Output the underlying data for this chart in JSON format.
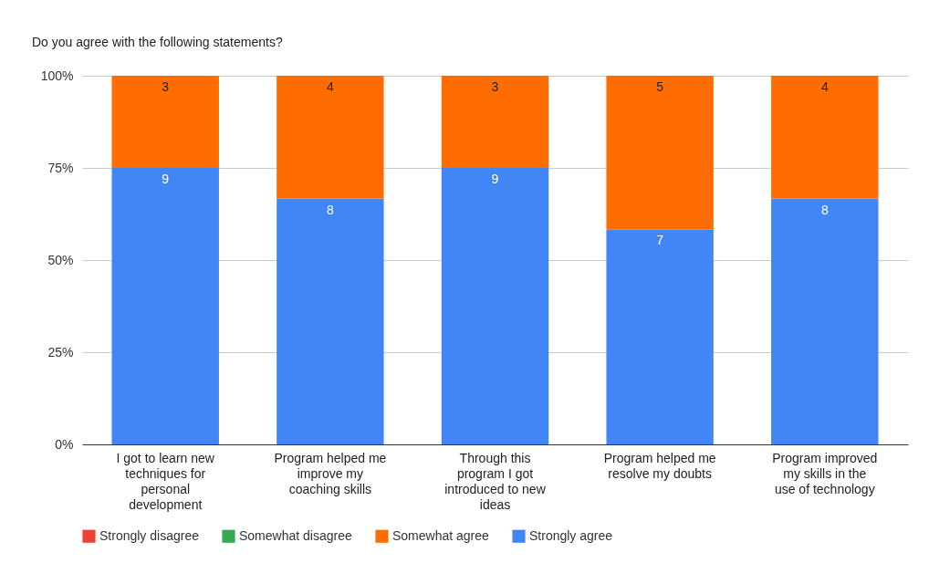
{
  "chart_data": {
    "type": "bar",
    "stacked": true,
    "title": "Do you agree with the following statements?",
    "categories": [
      "I got to learn new techniques for personal development",
      "Program helped me improve my coaching skills",
      "Through this program I got introduced to new ideas",
      "Program helped me resolve my doubts",
      "Program improved my skills in the use of technology"
    ],
    "series": [
      {
        "name": "Strongly agree",
        "color": "#4285f4",
        "values": [
          75,
          66.7,
          75,
          58.3,
          66.7
        ]
      },
      {
        "name": "Somewhat agree",
        "color": "#ff6d01",
        "values": [
          25,
          33.3,
          25,
          41.7,
          33.3
        ]
      },
      {
        "name": "Somewhat disagree",
        "color": "#34a853",
        "values": [
          null,
          null,
          null,
          null,
          null
        ]
      },
      {
        "name": "Strongly disagree",
        "color": "#ea4335",
        "values": [
          null,
          null,
          null,
          null,
          null
        ]
      }
    ],
    "annotations": [
      {
        "text": "9",
        "x": "I got to learn new techniques for personal development",
        "y": 75
      },
      {
        "text": "8",
        "x": "Program helped me improve my coaching skills",
        "y": 66.7
      },
      {
        "text": "9",
        "x": "Through this program I got introduced to new ideas",
        "y": 75
      },
      {
        "text": "7",
        "x": "Program helped me resolve my doubts",
        "y": 58.3
      },
      {
        "text": "8",
        "x": "Program improved my skills in the use of technology",
        "y": 66.7
      },
      {
        "text": "3",
        "x": "I got to learn new techniques for personal development",
        "y": 100
      },
      {
        "text": "4",
        "x": "Program helped me improve my coaching skills",
        "y": 100
      },
      {
        "text": "3",
        "x": "Through this program I got introduced to new ideas",
        "y": 100
      },
      {
        "text": "5",
        "x": "Program helped me resolve my doubts",
        "y": 100
      },
      {
        "text": "4",
        "x": "Program improved my skills in the use of technology",
        "y": 100
      }
    ],
    "ylim": [
      0,
      100
    ],
    "yticks": [
      {
        "value": 0,
        "label": "0%"
      },
      {
        "value": 25,
        "label": "25%"
      },
      {
        "value": 50,
        "label": "50%"
      },
      {
        "value": 75,
        "label": "75%"
      },
      {
        "value": 100,
        "label": "100%"
      }
    ],
    "grid": "y",
    "legend": "bottom"
  }
}
